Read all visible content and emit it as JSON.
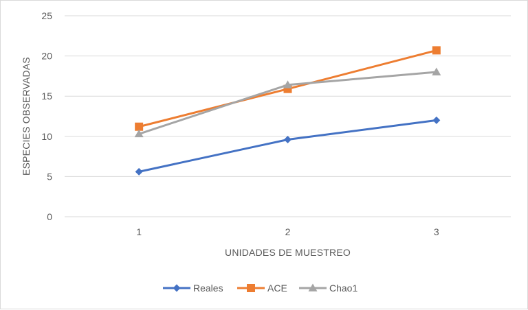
{
  "chart_data": {
    "type": "line",
    "title": "",
    "xlabel": "UNIDADES DE MUESTREO",
    "ylabel": "ESPECIES OBSERVADAS",
    "categories": [
      "1",
      "2",
      "3"
    ],
    "ylim": [
      0,
      25
    ],
    "yticks": [
      0,
      5,
      10,
      15,
      20,
      25
    ],
    "grid": true,
    "legend": "bottom",
    "series": [
      {
        "name": "Reales",
        "values": [
          5.6,
          9.6,
          12.0
        ],
        "color": "#4472C4",
        "marker": "diamond"
      },
      {
        "name": "ACE",
        "values": [
          11.2,
          15.9,
          20.7
        ],
        "color": "#ED7D31",
        "marker": "square"
      },
      {
        "name": "Chao1",
        "values": [
          10.3,
          16.4,
          18.0
        ],
        "color": "#A5A5A5",
        "marker": "triangle"
      }
    ]
  }
}
